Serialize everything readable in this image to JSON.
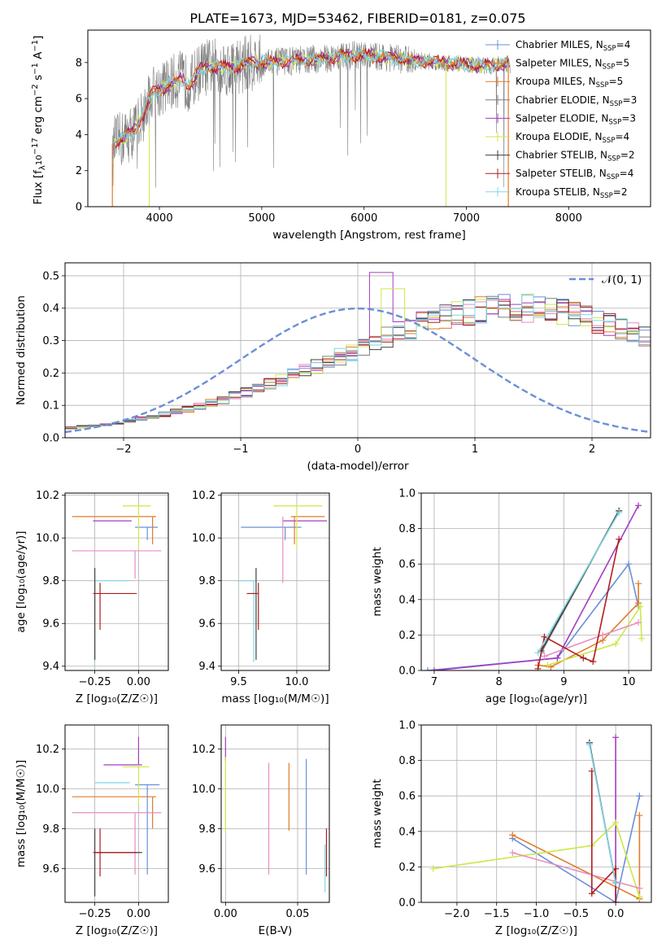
{
  "title": "PLATE=1673, MJD=53462, FIBERID=0181, z=0.075",
  "colors": {
    "c0": "#6a8fd8",
    "c1": "#e07b2a",
    "c2": "#7f7f7f",
    "c3": "#a53cc0",
    "c4": "#cde74a",
    "c5": "#e88dc0",
    "c6": "#3f3f3f",
    "c7": "#b01d1d",
    "c8": "#7fd7e6"
  },
  "legend_top": {
    "entries": [
      {
        "pre": "Chabrier MILES, N",
        "sub": "SSP",
        "post": "=4",
        "color": "#6a8fd8"
      },
      {
        "pre": "Salpeter MILES, N",
        "sub": "SSP",
        "post": "=5",
        "color": "#e07b2a"
      },
      {
        "pre": "Kroupa MILES, N",
        "sub": "SSP",
        "post": "=5",
        "color": "#e07b2a"
      },
      {
        "pre": "Chabrier ELODIE, N",
        "sub": "SSP",
        "post": "=3",
        "color": "#7f7f7f"
      },
      {
        "pre": "Salpeter ELODIE, N",
        "sub": "SSP",
        "post": "=3",
        "color": "#a53cc0"
      },
      {
        "pre": "Kroupa ELODIE, N",
        "sub": "SSP",
        "post": "=4",
        "color": "#cde74a"
      },
      {
        "pre": "Chabrier STELIB, N",
        "sub": "SSP",
        "post": "=2",
        "color": "#3f3f3f"
      },
      {
        "pre": "Salpeter STELIB, N",
        "sub": "SSP",
        "post": "=4",
        "color": "#b01d1d"
      },
      {
        "pre": "Kroupa STELIB, N",
        "sub": "SSP",
        "post": "=2",
        "color": "#7fd7e6"
      }
    ]
  },
  "legend_hist": {
    "label": "𝒩(0, 1)",
    "color": "#6a8fd8"
  },
  "chart_data": [
    {
      "id": "spectrum",
      "type": "line",
      "xlabel": "wavelength [Angstrom, rest frame]",
      "ylabel_pre": "Flux [f",
      "ylabel_sub": "λ",
      "ylabel_mid": "10",
      "ylabel_sup": "−17",
      "ylabel_post": " erg cm",
      "ylabel_sup2": "−2",
      "ylabel_post2": " s",
      "ylabel_sup3": "−1",
      "ylabel_post3": " A",
      "ylabel_sup4": "−1",
      "ylabel_end": "]",
      "xlim": [
        3300,
        8800
      ],
      "ylim": [
        0,
        9.8
      ],
      "xticks": [
        4000,
        5000,
        6000,
        7000,
        8000
      ],
      "yticks": [
        0,
        2,
        4,
        6,
        8
      ],
      "model_continuum": {
        "x": [
          3500,
          3560,
          3650,
          3750,
          3850,
          3930,
          4000,
          4100,
          4200,
          4300,
          4400,
          4500,
          4700,
          4900,
          5100,
          5300,
          5600,
          5900,
          6200,
          6500,
          6800,
          7000,
          7200,
          7400
        ],
        "y": [
          0.0,
          3.5,
          3.8,
          4.2,
          5.2,
          6.3,
          6.5,
          6.8,
          7.1,
          6.8,
          7.6,
          7.8,
          7.7,
          8.0,
          8.0,
          8.1,
          8.2,
          8.4,
          8.3,
          8.1,
          8.0,
          7.9,
          7.8,
          7.9
        ]
      }
    },
    {
      "id": "residual_hist",
      "type": "histogram",
      "xlabel": "(data-model)/error",
      "ylabel": "Normed distribution",
      "xlim": [
        -2.5,
        2.5
      ],
      "ylim": [
        0,
        0.54
      ],
      "xticks": [
        -2,
        -1,
        0,
        1,
        2
      ],
      "xticklabels": [
        "−2",
        "−1",
        "0",
        "1",
        "2"
      ],
      "yticks": [
        0.0,
        0.1,
        0.2,
        0.3,
        0.4,
        0.5
      ],
      "yticklabels": [
        "0.0",
        "0.1",
        "0.2",
        "0.3",
        "0.4",
        "0.5"
      ],
      "bin_width": 0.1,
      "base_values": [
        0.03,
        0.034,
        0.038,
        0.042,
        0.046,
        0.052,
        0.058,
        0.065,
        0.072,
        0.08,
        0.088,
        0.097,
        0.107,
        0.117,
        0.128,
        0.14,
        0.152,
        0.165,
        0.178,
        0.192,
        0.206,
        0.221,
        0.236,
        0.251,
        0.266,
        0.281,
        0.296,
        0.311,
        0.325,
        0.338,
        0.351,
        0.362,
        0.372,
        0.381,
        0.388,
        0.394,
        0.398,
        0.4,
        0.401,
        0.4,
        0.398,
        0.394,
        0.388,
        0.381,
        0.372,
        0.362,
        0.351,
        0.338,
        0.325,
        0.311,
        0.296,
        0.281,
        0.266,
        0.251,
        0.236,
        0.221,
        0.206,
        0.192,
        0.178,
        0.165,
        0.152,
        0.14,
        0.128,
        0.117,
        0.107,
        0.097,
        0.088,
        0.08,
        0.072,
        0.065,
        0.058,
        0.052,
        0.046,
        0.042,
        0.038,
        0.034,
        0.03,
        0.028,
        0.026,
        0.025
      ],
      "spike": {
        "series": 3,
        "x": 0.2,
        "value": 0.51
      },
      "spike2": {
        "series": 4,
        "x": 0.3,
        "value": 0.46
      }
    },
    {
      "id": "age_vs_Z",
      "type": "errorbar",
      "xlabel": "Z [log₁₀(Z/Z☉)]",
      "ylabel": "age  [log₁₀(age/yr)]",
      "xlim": [
        -0.42,
        0.17
      ],
      "ylim": [
        9.38,
        10.21
      ],
      "xticks": [
        -0.25,
        0.0
      ],
      "xticklabels": [
        "−0.25",
        "0.00"
      ],
      "yticks": [
        9.4,
        9.6,
        9.8,
        10.0,
        10.2
      ],
      "yticklabels": [
        "9.4",
        "9.6",
        "9.8",
        "10.0",
        "10.2"
      ],
      "points": [
        {
          "c": 0,
          "x": 0.05,
          "xerr": [
            0.07,
            0.06
          ],
          "y": 10.05,
          "yerr": [
            0.06,
            0.0
          ]
        },
        {
          "c": 1,
          "x": 0.08,
          "xerr": [
            0.46,
            0.02
          ],
          "y": 10.1,
          "yerr": [
            0.13,
            0.0
          ]
        },
        {
          "c": 3,
          "x": -0.1,
          "xerr": [
            0.16,
            0.06
          ],
          "y": 10.08,
          "yerr": [
            0.0,
            0.0
          ]
        },
        {
          "c": 4,
          "x": 0.0,
          "xerr": [
            0.09,
            0.07
          ],
          "y": 10.15,
          "yerr": [
            0.2,
            0.0
          ]
        },
        {
          "c": 5,
          "x": -0.02,
          "xerr": [
            0.36,
            0.15
          ],
          "y": 9.94,
          "yerr": [
            0.13,
            0.0
          ]
        },
        {
          "c": 8,
          "x": -0.25,
          "xerr": [
            0.0,
            0.2
          ],
          "y": 9.8,
          "yerr": [
            0.38,
            0.0
          ]
        },
        {
          "c": 6,
          "x": -0.25,
          "xerr": [
            0.0,
            0.0
          ],
          "y": 9.8,
          "yerr": [
            0.37,
            0.06
          ]
        },
        {
          "c": 7,
          "x": -0.22,
          "xerr": [
            0.04,
            0.21
          ],
          "y": 9.74,
          "yerr": [
            0.17,
            0.05
          ]
        }
      ]
    },
    {
      "id": "age_vs_mass",
      "type": "errorbar",
      "xlabel": "mass [log₁₀(M/M☉)]",
      "ylabel": "",
      "xlim": [
        9.35,
        10.28
      ],
      "ylim": [
        9.38,
        10.21
      ],
      "xticks": [
        9.5,
        10.0
      ],
      "xticklabels": [
        "9.5",
        "10.0"
      ],
      "yticks": [
        9.4,
        9.6,
        9.8,
        10.0,
        10.2
      ],
      "yticklabels": [
        "9.4",
        "9.6",
        "9.8",
        "10.0",
        "10.2"
      ],
      "points": [
        {
          "c": 0,
          "x": 9.9,
          "xerr": [
            0.38,
            0.14
          ],
          "y": 10.05,
          "yerr": [
            0.06,
            0.0
          ]
        },
        {
          "c": 1,
          "x": 9.98,
          "xerr": [
            0.03,
            0.26
          ],
          "y": 10.1,
          "yerr": [
            0.13,
            0.0
          ]
        },
        {
          "c": 3,
          "x": 10.0,
          "xerr": [
            0.12,
            0.26
          ],
          "y": 10.08,
          "yerr": [
            0.0,
            0.0
          ]
        },
        {
          "c": 4,
          "x": 10.0,
          "xerr": [
            0.2,
            0.22
          ],
          "y": 10.15,
          "yerr": [
            0.2,
            0.0
          ]
        },
        {
          "c": 5,
          "x": 9.88,
          "xerr": [
            0.0,
            0.0
          ],
          "y": 9.94,
          "yerr": [
            0.15,
            0.16
          ]
        },
        {
          "c": 8,
          "x": 9.63,
          "xerr": [
            0.15,
            0.0
          ],
          "y": 9.8,
          "yerr": [
            0.38,
            0.0
          ]
        },
        {
          "c": 6,
          "x": 9.65,
          "xerr": [
            0.0,
            0.0
          ],
          "y": 9.8,
          "yerr": [
            0.37,
            0.06
          ]
        },
        {
          "c": 7,
          "x": 9.67,
          "xerr": [
            0.1,
            0.0
          ],
          "y": 9.74,
          "yerr": [
            0.17,
            0.05
          ]
        }
      ]
    },
    {
      "id": "weight_vs_age",
      "type": "line",
      "xlabel": "age  [log₁₀(age/yr)]",
      "ylabel": "mass weight",
      "xlim": [
        6.8,
        10.35
      ],
      "ylim": [
        0,
        1.0
      ],
      "xticks": [
        7,
        8,
        9,
        10
      ],
      "xticklabels": [
        "7",
        "8",
        "9",
        "10"
      ],
      "yticks": [
        0.0,
        0.2,
        0.4,
        0.6,
        0.8,
        1.0
      ],
      "yticklabels": [
        "0.0",
        "0.2",
        "0.4",
        "0.6",
        "0.8",
        "1.0"
      ],
      "series": [
        {
          "c": 0,
          "x": [
            6.9,
            8.9,
            10.0,
            10.15
          ],
          "y": [
            0.0,
            0.07,
            0.6,
            0.36
          ]
        },
        {
          "c": 1,
          "x": [
            8.6,
            8.8,
            9.6,
            10.15,
            10.15
          ],
          "y": [
            0.03,
            0.02,
            0.17,
            0.38,
            0.49
          ]
        },
        {
          "c": 2,
          "x": [
            8.65,
            9.85
          ],
          "y": [
            0.1,
            0.9
          ]
        },
        {
          "c": 3,
          "x": [
            7.0,
            8.9,
            10.15
          ],
          "y": [
            0.0,
            0.07,
            0.93
          ]
        },
        {
          "c": 4,
          "x": [
            8.75,
            9.8,
            10.18,
            10.2
          ],
          "y": [
            0.03,
            0.15,
            0.36,
            0.18
          ]
        },
        {
          "c": 5,
          "x": [
            8.7,
            9.6,
            10.15
          ],
          "y": [
            0.08,
            0.2,
            0.27
          ]
        },
        {
          "c": 6,
          "x": [
            8.65,
            9.85
          ],
          "y": [
            0.11,
            0.9
          ]
        },
        {
          "c": 7,
          "x": [
            8.6,
            8.7,
            9.3,
            9.45,
            9.85
          ],
          "y": [
            0.01,
            0.19,
            0.07,
            0.05,
            0.74
          ]
        },
        {
          "c": 8,
          "x": [
            8.6,
            9.85
          ],
          "y": [
            0.1,
            0.89
          ]
        }
      ]
    },
    {
      "id": "mass_vs_Z",
      "type": "errorbar",
      "xlabel": "Z [log₁₀(Z/Z☉)]",
      "ylabel": "mass [log₁₀(M/M☉)]",
      "xlim": [
        -0.42,
        0.17
      ],
      "ylim": [
        9.43,
        10.32
      ],
      "xticks": [
        -0.25,
        0.0
      ],
      "xticklabels": [
        "−0.25",
        "0.00"
      ],
      "yticks": [
        9.6,
        9.8,
        10.0,
        10.2
      ],
      "yticklabels": [
        "9.6",
        "9.8",
        "10.0",
        "10.2"
      ],
      "points": [
        {
          "c": 0,
          "x": 0.05,
          "xerr": [
            0.07,
            0.07
          ],
          "y": 10.02,
          "yerr": [
            0.45,
            0.0
          ]
        },
        {
          "c": 1,
          "x": 0.08,
          "xerr": [
            0.46,
            0.02
          ],
          "y": 9.96,
          "yerr": [
            0.16,
            0.0
          ]
        },
        {
          "c": 3,
          "x": -0.1,
          "xerr": [
            0.1,
            0.12
          ],
          "y": 10.12,
          "yerr": [
            0.0,
            0.0
          ]
        },
        {
          "c": 4,
          "x": 0.0,
          "xerr": [
            0.09,
            0.06
          ],
          "y": 10.11,
          "yerr": [
            0.19,
            0.05
          ]
        },
        {
          "c": 5,
          "x": -0.02,
          "xerr": [
            0.36,
            0.15
          ],
          "y": 9.88,
          "yerr": [
            0.31,
            0.0
          ]
        },
        {
          "c": 3,
          "x": 0.0,
          "xerr": [
            0.0,
            0.0
          ],
          "y": 10.12,
          "yerr": [
            0.0,
            0.14
          ]
        },
        {
          "c": 8,
          "x": -0.25,
          "xerr": [
            0.0,
            0.2
          ],
          "y": 10.03,
          "yerr": [
            0.0,
            0.0
          ]
        },
        {
          "c": 6,
          "x": -0.25,
          "xerr": [
            0.0,
            0.27
          ],
          "y": 9.68,
          "yerr": [
            0.22,
            0.12
          ]
        },
        {
          "c": 7,
          "x": -0.22,
          "xerr": [
            0.04,
            0.21
          ],
          "y": 9.68,
          "yerr": [
            0.12,
            0.12
          ]
        }
      ]
    },
    {
      "id": "mass_vs_ebv",
      "type": "errorbar",
      "xlabel": "E(B-V)",
      "ylabel": "",
      "xlim": [
        -0.003,
        0.072
      ],
      "ylim": [
        9.43,
        10.32
      ],
      "xticks": [
        0.0,
        0.05
      ],
      "xticklabels": [
        "0.00",
        "0.05"
      ],
      "yticks": [
        9.6,
        9.8,
        10.0,
        10.2
      ],
      "yticklabels": [
        "9.6",
        "9.8",
        "10.0",
        "10.2"
      ],
      "points": [
        {
          "c": 0,
          "x": 0.056,
          "xerr": [
            0,
            0
          ],
          "y": 9.86,
          "yerr": [
            0.29,
            0.29
          ]
        },
        {
          "c": 1,
          "x": 0.044,
          "xerr": [
            0,
            0
          ],
          "y": 9.96,
          "yerr": [
            0.17,
            0.17
          ]
        },
        {
          "c": 3,
          "x": 0.0,
          "xerr": [
            0,
            0
          ],
          "y": 10.2,
          "yerr": [
            0.06,
            0.06
          ]
        },
        {
          "c": 4,
          "x": 0.0,
          "xerr": [
            0,
            0
          ],
          "y": 9.97,
          "yerr": [
            0.19,
            0.19
          ]
        },
        {
          "c": 5,
          "x": 0.03,
          "xerr": [
            0,
            0
          ],
          "y": 9.85,
          "yerr": [
            0.28,
            0.28
          ]
        },
        {
          "c": 7,
          "x": 0.07,
          "xerr": [
            0,
            0
          ],
          "y": 9.68,
          "yerr": [
            0.12,
            0.12
          ]
        },
        {
          "c": 8,
          "x": 0.069,
          "xerr": [
            0,
            0
          ],
          "y": 9.6,
          "yerr": [
            0.12,
            0.12
          ]
        }
      ]
    },
    {
      "id": "weight_vs_Z",
      "type": "line",
      "xlabel": "Z [log₁₀(Z/Z☉)]",
      "ylabel": "mass weight",
      "xlim": [
        -2.45,
        0.45
      ],
      "ylim": [
        0,
        1.0
      ],
      "xticks": [
        -2.0,
        -1.5,
        -1.0,
        -0.5,
        0.0
      ],
      "xticklabels": [
        "−2.0",
        "−1.5",
        "−1.0",
        "−0.5",
        "0.0"
      ],
      "yticks": [
        0.0,
        0.2,
        0.4,
        0.6,
        0.8,
        1.0
      ],
      "yticklabels": [
        "0.0",
        "0.2",
        "0.4",
        "0.6",
        "0.8",
        "1.0"
      ],
      "series": [
        {
          "c": 0,
          "x": [
            -1.3,
            0.0,
            0.3,
            0.3
          ],
          "y": [
            0.36,
            0.0,
            0.6,
            0.6
          ]
        },
        {
          "c": 1,
          "x": [
            -1.3,
            0.3,
            0.3,
            0.3
          ],
          "y": [
            0.38,
            0.02,
            0.08,
            0.49
          ]
        },
        {
          "c": 2,
          "x": [
            -0.33,
            0.0
          ],
          "y": [
            0.9,
            0.11
          ]
        },
        {
          "c": 3,
          "x": [
            0.0,
            0.0
          ],
          "y": [
            0.0,
            0.93
          ]
        },
        {
          "c": 4,
          "x": [
            -2.3,
            -0.3,
            0.0,
            0.3,
            0.3
          ],
          "y": [
            0.19,
            0.32,
            0.45,
            0.03,
            0.03
          ]
        },
        {
          "c": 5,
          "x": [
            -1.3,
            0.3
          ],
          "y": [
            0.28,
            0.08
          ]
        },
        {
          "c": 6,
          "x": [
            -0.33,
            0.0
          ],
          "y": [
            0.9,
            0.11
          ]
        },
        {
          "c": 7,
          "x": [
            -0.3,
            -0.3,
            0.0,
            0.0,
            0.0
          ],
          "y": [
            0.74,
            0.05,
            0.19,
            0.0,
            0.19
          ]
        },
        {
          "c": 8,
          "x": [
            -0.33,
            0.0
          ],
          "y": [
            0.89,
            0.11
          ]
        }
      ]
    }
  ]
}
